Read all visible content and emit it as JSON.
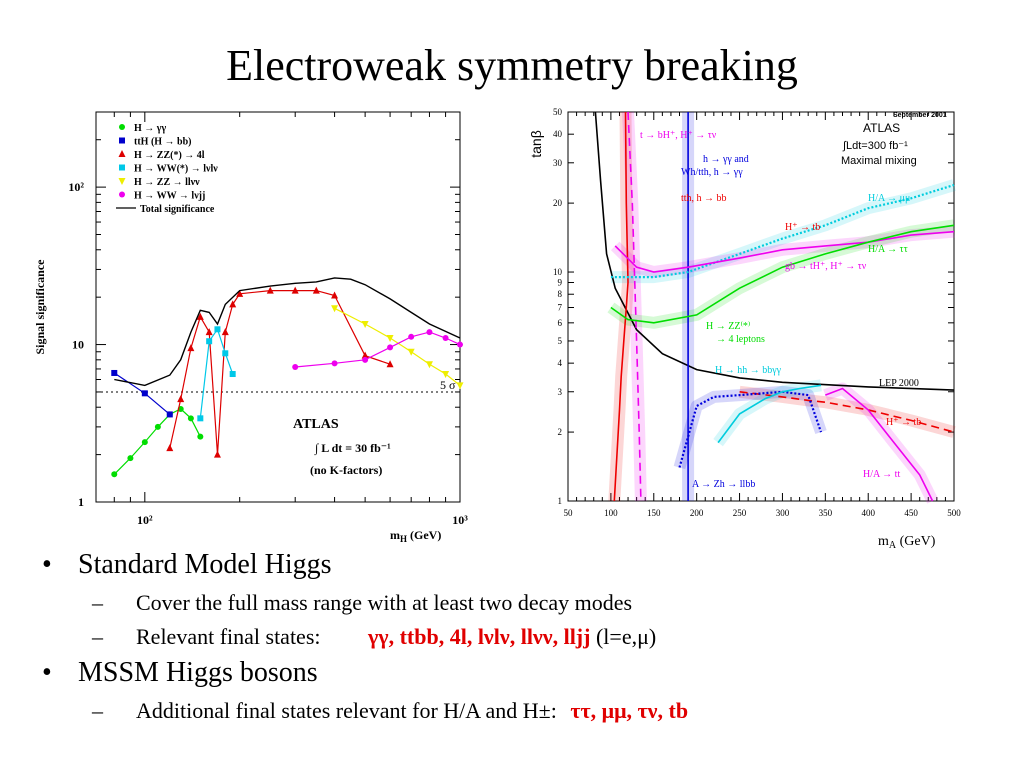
{
  "title": "Electroweak symmetry breaking",
  "bullets": [
    {
      "text": "Standard Model Higgs",
      "sub": [
        {
          "text": "Cover the full mass range with at least two decay modes"
        },
        {
          "text": "Relevant final states:",
          "highlight": "γγ, ttbb, 4l, lνlν, llνν, lljj",
          "suffix": "(l=e,μ)"
        }
      ]
    },
    {
      "text": "MSSM Higgs bosons",
      "sub": [
        {
          "text": "Additional final states relevant for H/A and H±:",
          "highlight": "ττ, μμ, τν, tb"
        }
      ]
    }
  ],
  "chart_data": [
    {
      "type": "line",
      "ylabel": "Signal significance",
      "xlabel": "m_H (GeV)",
      "xscale": "log",
      "yscale": "log",
      "xlim": [
        70,
        1000
      ],
      "ylim": [
        1,
        300
      ],
      "x_tick_labels": [
        "10²",
        "10³"
      ],
      "y_tick_labels": [
        "1",
        "10",
        "10²"
      ],
      "reference_line": {
        "value": 5,
        "label": "5 σ",
        "style": "dotted"
      },
      "legend_position": "top-left",
      "annotations": [
        "ATLAS",
        "∫ L dt = 30 fb⁻¹",
        "(no K-factors)"
      ],
      "series": [
        {
          "name": "H → γγ",
          "color": "#00dd00",
          "marker": "circle",
          "x": [
            80,
            90,
            100,
            110,
            120,
            130,
            140,
            150
          ],
          "y": [
            1.5,
            1.9,
            2.4,
            3.0,
            3.6,
            3.9,
            3.4,
            2.6
          ]
        },
        {
          "name": "ttH (H → bb)",
          "color": "#0000cc",
          "marker": "square",
          "x": [
            80,
            100,
            120
          ],
          "y": [
            6.6,
            4.9,
            3.6
          ]
        },
        {
          "name": "H → ZZ(*) → 4l",
          "color": "#dd0000",
          "marker": "triangle",
          "x": [
            120,
            130,
            140,
            150,
            160,
            170,
            180,
            190,
            200,
            250,
            300,
            350,
            400,
            500,
            600
          ],
          "y": [
            2.2,
            4.5,
            9.5,
            15.0,
            12.0,
            2.0,
            12.0,
            18.0,
            21.0,
            22.0,
            22.0,
            22.0,
            20.5,
            8.5,
            7.5
          ]
        },
        {
          "name": "H → WW(*) → lνlν",
          "color": "#00c8e8",
          "marker": "square",
          "x": [
            150,
            160,
            170,
            180,
            190
          ],
          "y": [
            3.4,
            10.5,
            12.5,
            8.8,
            6.5
          ]
        },
        {
          "name": "H → ZZ → llνν",
          "color": "#eeee00",
          "marker": "triangle-down",
          "x": [
            400,
            500,
            600,
            700,
            800,
            900,
            1000
          ],
          "y": [
            17.0,
            13.5,
            11.0,
            9.0,
            7.5,
            6.5,
            5.5
          ]
        },
        {
          "name": "H → WW → lνjj",
          "color": "#ee00ee",
          "marker": "circle",
          "x": [
            300,
            400,
            500,
            600,
            700,
            800,
            900,
            1000
          ],
          "y": [
            7.2,
            7.6,
            8.0,
            9.6,
            11.2,
            12.0,
            11.0,
            10.0
          ]
        },
        {
          "name": "Total significance",
          "color": "#000000",
          "marker": "none",
          "x": [
            80,
            100,
            120,
            130,
            140,
            150,
            160,
            170,
            180,
            200,
            250,
            300,
            350,
            400,
            450,
            500,
            600,
            700,
            800,
            1000
          ],
          "y": [
            6.0,
            5.5,
            6.4,
            8.0,
            12.0,
            16.5,
            16.0,
            13.5,
            18.0,
            22.0,
            23.5,
            24.5,
            25.0,
            26.5,
            26.0,
            24.0,
            19.5,
            16.0,
            13.5,
            11.0
          ]
        }
      ]
    },
    {
      "type": "line",
      "xlabel": "m_A (GeV)",
      "ylabel": "tanβ",
      "yscale": "log",
      "xlim": [
        50,
        500
      ],
      "ylim": [
        1,
        50
      ],
      "x_ticks": [
        50,
        100,
        150,
        200,
        250,
        300,
        350,
        400,
        450,
        500
      ],
      "y_ticks": [
        1,
        2,
        3,
        4,
        5,
        6,
        7,
        8,
        9,
        10,
        20,
        30,
        40,
        50
      ],
      "annotations": [
        "September 2001",
        "ATLAS",
        "∫Ldt=300 fb⁻¹",
        "Maximal mixing"
      ],
      "curve_labels": [
        "t → bH⁺, H⁺ → τν",
        "h → γγ and",
        "Wh/tth, h → γγ",
        "tth, h → bb",
        "H/A → μμ",
        "H⁺ → tb",
        "H/A → ττ",
        "gb → tH⁺, H⁺ → τν",
        "H → ZZ⁽*⁾",
        "→ 4 leptons",
        "H → hh → bbγγ",
        "LEP 2000",
        "H⁺ → tb",
        "A → Zh → llbb",
        "H/A → tt"
      ],
      "series": [
        {
          "name": "LEP 2000",
          "color": "#000000",
          "style": "solid",
          "x": [
            82,
            88,
            95,
            105,
            130,
            160,
            200,
            250,
            300,
            400,
            500
          ],
          "y": [
            50,
            25,
            12,
            8.5,
            5.6,
            4.4,
            3.75,
            3.45,
            3.3,
            3.15,
            3.05
          ]
        },
        {
          "name": "t → bH⁺, H⁺ → τν",
          "color": "#ee00ee",
          "style": "dashed",
          "x": [
            120,
            125,
            130,
            133,
            135
          ],
          "y": [
            50,
            20,
            5,
            2,
            1
          ]
        },
        {
          "name": "h → γγ and Wh/tth, h → γγ",
          "color": "#0000dd",
          "style": "solid",
          "x": [
            190,
            190
          ],
          "y": [
            50,
            1
          ]
        },
        {
          "name": "tth, h → bb",
          "color": "#ee0000",
          "style": "solid",
          "x": [
            104,
            110,
            112,
            115,
            118,
            120,
            118,
            117
          ],
          "y": [
            1,
            2.5,
            3.5,
            5,
            7,
            9,
            20,
            50
          ]
        },
        {
          "name": "H/A → μμ",
          "color": "#00ccdd",
          "style": "dotted",
          "x": [
            100,
            150,
            190,
            250,
            300,
            350,
            400,
            450,
            500
          ],
          "y": [
            9.5,
            9.5,
            10,
            12,
            14,
            16,
            19,
            21,
            24
          ]
        },
        {
          "name": "gb → tH⁺, H⁺ → τν",
          "color": "#ee00ee",
          "style": "solid",
          "x": [
            105,
            130,
            150,
            190,
            250,
            300,
            350,
            400,
            450,
            500
          ],
          "y": [
            13,
            10.5,
            10,
            10.5,
            11.5,
            12.5,
            13,
            13.5,
            14.5,
            15
          ]
        },
        {
          "name": "H/A → ττ",
          "color": "#00dd00",
          "style": "solid",
          "x": [
            100,
            120,
            150,
            200,
            250,
            300,
            350,
            400,
            450,
            500
          ],
          "y": [
            7,
            6.2,
            6.0,
            6.5,
            8.5,
            10.5,
            12,
            13.5,
            15,
            16
          ]
        },
        {
          "name": "H⁺ → tb (lower)",
          "color": "#ee0000",
          "style": "dashed",
          "x": [
            250,
            300,
            330,
            350,
            400,
            450,
            500
          ],
          "y": [
            3.0,
            2.85,
            2.75,
            2.7,
            2.5,
            2.25,
            2.0
          ]
        },
        {
          "name": "A → Zh → llbb",
          "color": "#0000dd",
          "style": "dotted",
          "x": [
            180,
            200,
            220,
            250,
            300,
            330,
            345
          ],
          "y": [
            1.4,
            2.6,
            2.85,
            2.9,
            3.0,
            2.9,
            2.0
          ]
        },
        {
          "name": "H → hh → bbγγ",
          "color": "#00ccdd",
          "style": "solid",
          "x": [
            225,
            250,
            280,
            300,
            320,
            345
          ],
          "y": [
            1.8,
            2.4,
            2.8,
            3.0,
            3.1,
            3.2
          ]
        },
        {
          "name": "H/A → tt",
          "color": "#ee00ee",
          "style": "solid",
          "x": [
            350,
            370,
            400,
            430,
            460,
            475
          ],
          "y": [
            2.9,
            3.1,
            2.5,
            1.8,
            1.3,
            1.0
          ]
        }
      ]
    }
  ]
}
